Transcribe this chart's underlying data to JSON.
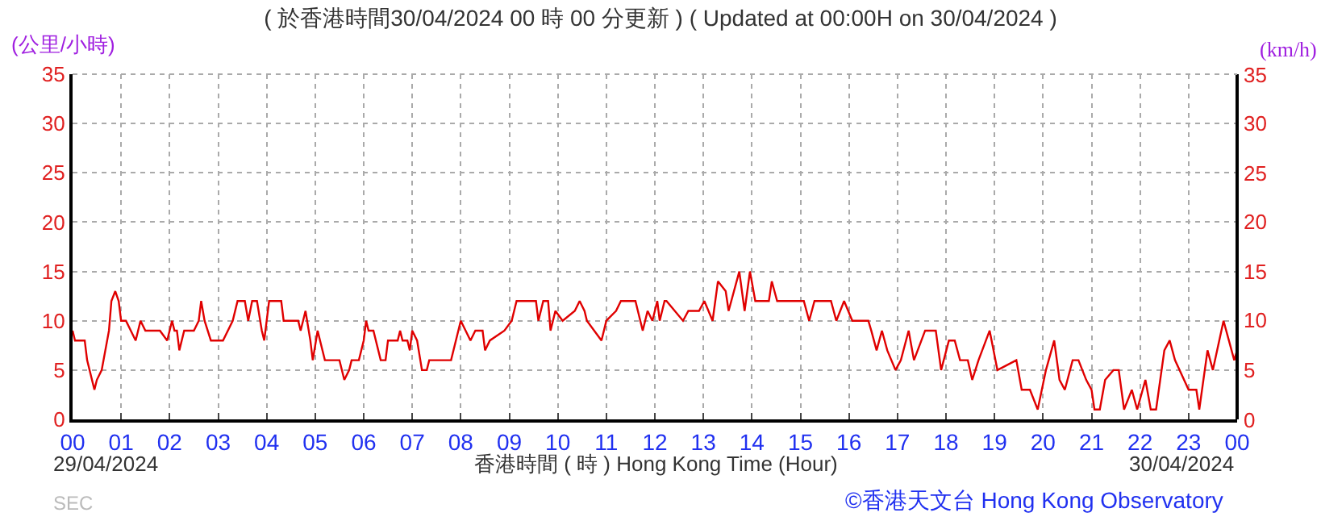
{
  "chart_data": {
    "type": "line",
    "title": "( 於香港時間30/04/2024 00 時 00 分更新 ) ( Updated at 00:00H on 30/04/2024 )",
    "xlabel": "香港時間 ( 時 ) Hong Kong Time (Hour)",
    "ylabel": "(公里/小時)",
    "y2label": "(km/h)",
    "annotations": [
      "29/04/2024",
      "30/04/2024",
      "©香港天文台 Hong Kong Observatory",
      "SEC"
    ],
    "x": [
      0,
      0.05,
      0.25,
      0.3,
      0.45,
      0.5,
      0.6,
      0.75,
      0.8,
      0.88,
      0.95,
      1.0,
      1.1,
      1.2,
      1.3,
      1.4,
      1.5,
      1.6,
      1.8,
      1.95,
      2.05,
      2.1,
      2.15,
      2.2,
      2.3,
      2.5,
      2.6,
      2.65,
      2.72,
      2.85,
      3.1,
      3.3,
      3.4,
      3.55,
      3.62,
      3.7,
      3.8,
      3.9,
      3.95,
      4.05,
      4.3,
      4.35,
      4.65,
      4.7,
      4.75,
      4.8,
      4.9,
      4.95,
      5.05,
      5.1,
      5.2,
      5.5,
      5.6,
      5.7,
      5.75,
      5.9,
      6.0,
      6.05,
      6.1,
      6.2,
      6.35,
      6.45,
      6.5,
      6.7,
      6.75,
      6.8,
      6.9,
      6.95,
      7.0,
      7.1,
      7.2,
      7.3,
      7.35,
      7.8,
      7.95,
      8.0,
      8.1,
      8.2,
      8.3,
      8.45,
      8.5,
      8.6,
      8.9,
      9.05,
      9.15,
      9.55,
      9.6,
      9.7,
      9.8,
      9.85,
      9.95,
      10.1,
      10.35,
      10.45,
      10.55,
      10.6,
      10.9,
      11.0,
      11.2,
      11.3,
      11.6,
      11.65,
      11.75,
      11.85,
      11.95,
      12.05,
      12.1,
      12.2,
      12.24,
      12.58,
      12.69,
      12.91,
      13.02,
      13.19,
      13.3,
      13.46,
      13.52,
      13.74,
      13.85,
      13.96,
      14.07,
      14.35,
      14.41,
      14.52,
      15.07,
      15.18,
      15.29,
      15.63,
      15.74,
      15.9,
      16.07,
      16.4,
      16.46,
      16.57,
      16.68,
      16.79,
      16.96,
      17.07,
      17.23,
      17.34,
      17.57,
      17.79,
      17.9,
      18.06,
      18.18,
      18.29,
      18.45,
      18.54,
      18.67,
      18.9,
      19.06,
      19.45,
      19.56,
      19.73,
      19.89,
      20.06,
      20.23,
      20.34,
      20.45,
      20.61,
      20.73,
      20.89,
      21.0,
      21.06,
      21.17,
      21.28,
      21.45,
      21.56,
      21.67,
      21.83,
      21.94,
      22.11,
      22.22,
      22.33,
      22.5,
      22.61,
      22.72,
      23.0,
      23.16,
      23.22,
      23.39,
      23.5,
      23.72,
      23.83,
      23.94,
      24.0
    ],
    "series": [
      {
        "color": "#e00000",
        "values": [
          9,
          8,
          8,
          6,
          3,
          4,
          5,
          9,
          12,
          13,
          12,
          10,
          10,
          9,
          8,
          10,
          9,
          9,
          9,
          8,
          10,
          9,
          9,
          7,
          9,
          9,
          10,
          12,
          10,
          8,
          8,
          10,
          12,
          12,
          10,
          12,
          12,
          9,
          8,
          12,
          12,
          10,
          10,
          9,
          10,
          11,
          8,
          6,
          9,
          8,
          6,
          6,
          4,
          5,
          6,
          6,
          8,
          10,
          9,
          9,
          6,
          6,
          8,
          8,
          9,
          8,
          8,
          7,
          9,
          8,
          5,
          5,
          6,
          6,
          9,
          10,
          9,
          8,
          9,
          9,
          7,
          8,
          9,
          10,
          12,
          12,
          10,
          12,
          12,
          9,
          11,
          10,
          11,
          12,
          11,
          10,
          8,
          10,
          11,
          12,
          12,
          11,
          9,
          11,
          10,
          12,
          10,
          12,
          12,
          10,
          11,
          11,
          12,
          10,
          14,
          13,
          11,
          15,
          11,
          15,
          12,
          12,
          14,
          12,
          12,
          10,
          12,
          12,
          10,
          12,
          10,
          10,
          9,
          7,
          9,
          7,
          5,
          6,
          9,
          6,
          9,
          9,
          5,
          8,
          8,
          6,
          6,
          4,
          6,
          9,
          5,
          6,
          3,
          3,
          1,
          5,
          8,
          4,
          3,
          6,
          6,
          4,
          3,
          1,
          1,
          4,
          5,
          5,
          1,
          3,
          1,
          4,
          1,
          1,
          7,
          8,
          6,
          3,
          3,
          1,
          7,
          5,
          10,
          8,
          6,
          7
        ]
      }
    ],
    "xlim": [
      0,
      24
    ],
    "xticks": [
      {
        "value": 0,
        "label": "00"
      },
      {
        "value": 1,
        "label": "01"
      },
      {
        "value": 2,
        "label": "02"
      },
      {
        "value": 3,
        "label": "03"
      },
      {
        "value": 4,
        "label": "04"
      },
      {
        "value": 5,
        "label": "05"
      },
      {
        "value": 6,
        "label": "06"
      },
      {
        "value": 7,
        "label": "07"
      },
      {
        "value": 8,
        "label": "08"
      },
      {
        "value": 9,
        "label": "09"
      },
      10,
      11,
      12,
      13,
      14,
      15,
      16,
      17,
      18,
      19,
      20,
      21,
      22,
      23,
      {
        "value": 24,
        "label": "00"
      }
    ],
    "ylim": [
      0,
      35
    ],
    "yticks": [
      0,
      5,
      10,
      15,
      20,
      25,
      30,
      35
    ],
    "y2lim": [
      0,
      35
    ],
    "y2ticks": [
      0,
      5,
      10,
      15,
      20,
      25,
      30,
      35
    ],
    "grid": true,
    "marker": "none",
    "line_style": "solid"
  }
}
